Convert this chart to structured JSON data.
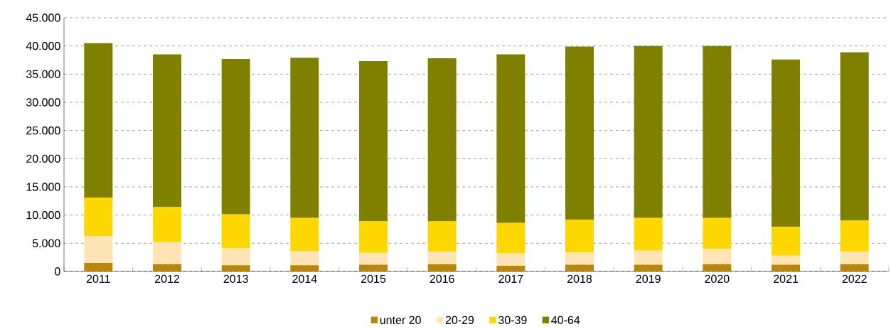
{
  "chart_data": {
    "type": "bar",
    "stacked": true,
    "categories": [
      "2011",
      "2012",
      "2013",
      "2014",
      "2015",
      "2016",
      "2017",
      "2018",
      "2019",
      "2020",
      "2021",
      "2022"
    ],
    "series": [
      {
        "name": "unter 20",
        "color": "#b8860b",
        "values": [
          1500,
          1300,
          1100,
          1100,
          1200,
          1300,
          1000,
          1200,
          1200,
          1300,
          1200,
          1300
        ]
      },
      {
        "name": "20-29",
        "color": "#ffe4b5",
        "values": [
          4800,
          3900,
          3000,
          2500,
          2100,
          2200,
          2200,
          2200,
          2500,
          2700,
          1600,
          2200
        ]
      },
      {
        "name": "30-39",
        "color": "#ffd700",
        "values": [
          6800,
          6200,
          6000,
          5900,
          5600,
          5400,
          5400,
          5800,
          5800,
          5500,
          5100,
          5500
        ]
      },
      {
        "name": "40-64",
        "color": "#808000",
        "values": [
          27400,
          27100,
          27600,
          28400,
          28400,
          28900,
          29900,
          30700,
          30500,
          30500,
          29700,
          29900
        ]
      }
    ],
    "ylim": [
      0,
      45000
    ],
    "yticks": [
      0,
      {
        "value": 5000,
        "label": "5.000"
      },
      {
        "value": 10000,
        "label": "10.000"
      },
      {
        "value": 15000,
        "label": "15.000"
      },
      {
        "value": 20000,
        "label": "20.000"
      },
      {
        "value": 25000,
        "label": "25.000"
      },
      {
        "value": 30000,
        "label": "30.000"
      },
      {
        "value": 35000,
        "label": "35.000"
      },
      {
        "value": 40000,
        "label": "40.000"
      },
      {
        "value": 45000,
        "label": "45.000"
      }
    ],
    "grid": "y",
    "legend": "bottom"
  }
}
